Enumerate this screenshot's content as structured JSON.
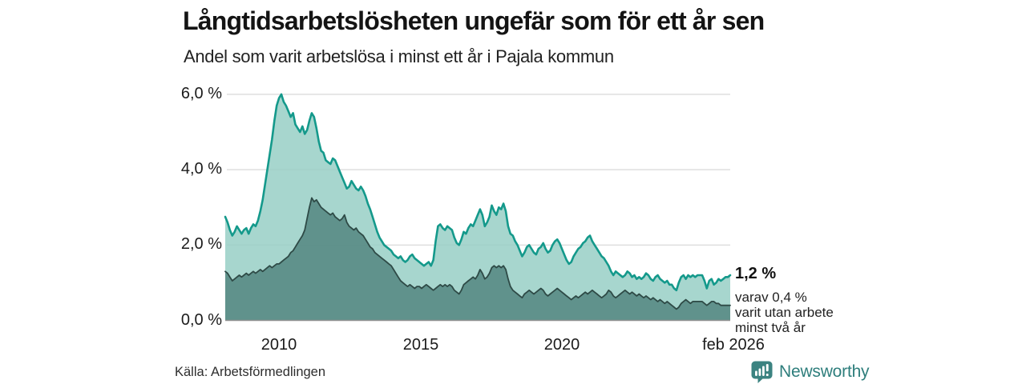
{
  "header": {
    "title": "Långtidsarbetslösheten ungefär som för ett år sen",
    "subtitle": "Andel som varit arbetslösa i minst ett år i Pajala kommun"
  },
  "footer": {
    "source": "Källa: Arbetsförmedlingen",
    "brand": "Newsworthy",
    "brand_icon": "newsworthy-barchart-pin-icon",
    "brand_color": "#2e7e7c",
    "brand_icon_color": "#3b8381"
  },
  "chart_data": {
    "type": "area",
    "title": "Långtidsarbetslösheten ungefär som för ett år sen",
    "subtitle": "Andel som varit arbetslösa i minst ett år i Pajala kommun",
    "unit": "%",
    "frequency": "monthly",
    "x_start": "feb 2008",
    "x_end": "feb 2026",
    "ylim": [
      0,
      6.5
    ],
    "grid": true,
    "y_ticks": [
      {
        "value": 0,
        "label": "0,0 %"
      },
      {
        "value": 2,
        "label": "2,0 %"
      },
      {
        "value": 4,
        "label": "4,0 %"
      },
      {
        "value": 6,
        "label": "6,0 %"
      }
    ],
    "x_ticks": [
      {
        "label": "2010"
      },
      {
        "label": "2015"
      },
      {
        "label": "2020"
      },
      {
        "label": "feb 2026"
      }
    ],
    "annotation": {
      "value_label": "1,2 %",
      "lines": [
        "varav 0,4 %",
        "varit utan arbete",
        "minst två år"
      ],
      "latest_total_pct": 1.2,
      "latest_two_years_pct": 0.4
    },
    "series": [
      {
        "name": "Andel arbetslösa minst ett år",
        "line_color": "#14998b",
        "fill_color": "#a8d5cc",
        "values": [
          2.75,
          2.6,
          2.4,
          2.25,
          2.35,
          2.5,
          2.4,
          2.3,
          2.4,
          2.45,
          2.3,
          2.45,
          2.55,
          2.5,
          2.65,
          2.9,
          3.2,
          3.6,
          4.0,
          4.4,
          4.8,
          5.3,
          5.7,
          5.9,
          6.0,
          5.8,
          5.7,
          5.55,
          5.4,
          5.5,
          5.2,
          5.1,
          5.0,
          5.15,
          4.95,
          5.05,
          5.3,
          5.5,
          5.4,
          5.1,
          4.75,
          4.5,
          4.45,
          4.25,
          4.2,
          4.15,
          4.3,
          4.25,
          4.1,
          3.95,
          3.8,
          3.65,
          3.5,
          3.55,
          3.7,
          3.6,
          3.5,
          3.45,
          3.55,
          3.45,
          3.3,
          3.1,
          2.95,
          2.75,
          2.55,
          2.35,
          2.2,
          2.1,
          2.0,
          1.95,
          1.9,
          1.85,
          1.75,
          1.7,
          1.65,
          1.7,
          1.6,
          1.55,
          1.6,
          1.7,
          1.75,
          1.65,
          1.6,
          1.55,
          1.5,
          1.45,
          1.5,
          1.55,
          1.45,
          1.6,
          2.1,
          2.5,
          2.55,
          2.45,
          2.4,
          2.5,
          2.45,
          2.4,
          2.2,
          2.05,
          2.0,
          2.15,
          2.35,
          2.3,
          2.45,
          2.55,
          2.5,
          2.65,
          2.8,
          2.95,
          2.8,
          2.5,
          2.6,
          2.75,
          3.05,
          2.9,
          2.8,
          3.0,
          2.95,
          3.1,
          2.9,
          2.5,
          2.3,
          2.25,
          2.1,
          2.0,
          1.85,
          1.7,
          1.8,
          1.95,
          2.0,
          1.9,
          1.8,
          1.75,
          1.9,
          1.95,
          2.05,
          1.9,
          1.8,
          1.85,
          2.0,
          2.1,
          2.15,
          2.05,
          1.9,
          1.75,
          1.6,
          1.5,
          1.55,
          1.7,
          1.8,
          1.9,
          1.95,
          2.05,
          2.1,
          2.2,
          2.25,
          2.1,
          2.0,
          1.9,
          1.8,
          1.7,
          1.65,
          1.55,
          1.45,
          1.3,
          1.2,
          1.3,
          1.25,
          1.2,
          1.15,
          1.2,
          1.3,
          1.25,
          1.15,
          1.2,
          1.1,
          1.15,
          1.1,
          1.15,
          1.25,
          1.2,
          1.1,
          1.05,
          1.15,
          1.2,
          1.1,
          1.05,
          1.0,
          1.05,
          0.95,
          0.95,
          0.85,
          0.8,
          1.0,
          1.15,
          1.2,
          1.1,
          1.2,
          1.15,
          1.2,
          1.15,
          1.2,
          1.2,
          1.2,
          1.05,
          0.85,
          1.05,
          1.1,
          0.95,
          1.0,
          1.1,
          1.05,
          1.1,
          1.15,
          1.15,
          1.2
        ]
      },
      {
        "name": "Andel arbetslösa minst två år",
        "line_color": "#2e4a46",
        "fill_color": "#6d9a95",
        "values": [
          1.3,
          1.25,
          1.15,
          1.05,
          1.1,
          1.15,
          1.2,
          1.15,
          1.2,
          1.25,
          1.2,
          1.25,
          1.3,
          1.25,
          1.3,
          1.35,
          1.3,
          1.35,
          1.4,
          1.45,
          1.4,
          1.45,
          1.5,
          1.5,
          1.55,
          1.6,
          1.65,
          1.7,
          1.8,
          1.85,
          1.95,
          2.05,
          2.15,
          2.25,
          2.4,
          2.7,
          3.0,
          3.25,
          3.15,
          3.2,
          3.1,
          3.0,
          2.95,
          2.9,
          2.85,
          2.8,
          2.85,
          2.75,
          2.7,
          2.65,
          2.7,
          2.8,
          2.6,
          2.5,
          2.45,
          2.4,
          2.45,
          2.35,
          2.3,
          2.25,
          2.15,
          2.05,
          1.95,
          1.9,
          1.8,
          1.75,
          1.7,
          1.65,
          1.6,
          1.55,
          1.5,
          1.45,
          1.35,
          1.25,
          1.15,
          1.05,
          1.0,
          0.95,
          0.9,
          0.95,
          0.9,
          0.85,
          0.9,
          0.9,
          0.85,
          0.9,
          0.95,
          0.9,
          0.85,
          0.8,
          0.85,
          0.9,
          0.95,
          0.9,
          0.95,
          0.9,
          0.95,
          0.9,
          0.8,
          0.75,
          0.7,
          0.8,
          0.95,
          1.0,
          1.05,
          1.1,
          1.15,
          1.1,
          1.2,
          1.35,
          1.25,
          1.1,
          1.15,
          1.25,
          1.4,
          1.45,
          1.4,
          1.45,
          1.4,
          1.45,
          1.35,
          1.1,
          0.9,
          0.8,
          0.75,
          0.7,
          0.65,
          0.6,
          0.7,
          0.75,
          0.8,
          0.75,
          0.7,
          0.75,
          0.8,
          0.85,
          0.8,
          0.7,
          0.65,
          0.7,
          0.75,
          0.8,
          0.85,
          0.8,
          0.75,
          0.7,
          0.65,
          0.6,
          0.55,
          0.6,
          0.65,
          0.6,
          0.65,
          0.7,
          0.75,
          0.7,
          0.75,
          0.8,
          0.75,
          0.7,
          0.65,
          0.6,
          0.65,
          0.7,
          0.8,
          0.75,
          0.65,
          0.6,
          0.65,
          0.7,
          0.75,
          0.8,
          0.75,
          0.7,
          0.75,
          0.7,
          0.65,
          0.7,
          0.65,
          0.6,
          0.65,
          0.6,
          0.55,
          0.6,
          0.55,
          0.5,
          0.55,
          0.5,
          0.45,
          0.5,
          0.45,
          0.4,
          0.35,
          0.3,
          0.35,
          0.45,
          0.5,
          0.55,
          0.5,
          0.45,
          0.5,
          0.5,
          0.5,
          0.5,
          0.5,
          0.45,
          0.4,
          0.45,
          0.5,
          0.5,
          0.45,
          0.45,
          0.4,
          0.4,
          0.4,
          0.4,
          0.4
        ]
      }
    ],
    "source": "Källa: Arbetsförmedlingen"
  }
}
